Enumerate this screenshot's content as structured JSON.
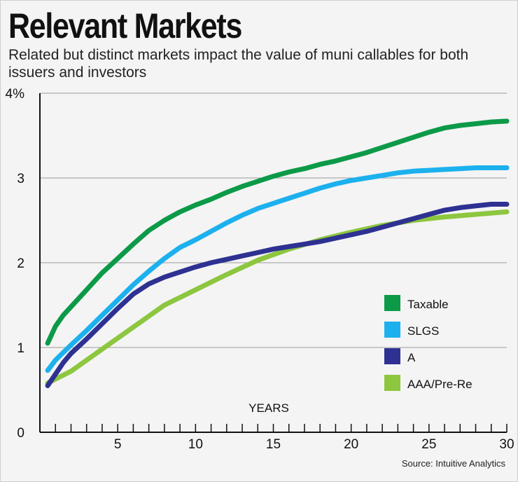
{
  "header": {
    "title": "Relevant Markets",
    "subtitle": "Related but distinct markets impact the value of muni callables for both issuers and investors"
  },
  "source": "Source: Intuitive Analytics",
  "chart_data": {
    "type": "line",
    "xlabel": "YEARS",
    "ylabel": "",
    "xlim": [
      0,
      30
    ],
    "ylim": [
      0,
      4
    ],
    "x_ticks": [
      5,
      10,
      15,
      20,
      25,
      30
    ],
    "x_tick_labels": [
      "5",
      "10",
      "15",
      "20",
      "25",
      "30"
    ],
    "y_ticks": [
      0,
      1,
      2,
      3,
      4
    ],
    "y_tick_labels": [
      "0",
      "1",
      "2",
      "3",
      "4%"
    ],
    "grid": true,
    "legend_position": "right-middle",
    "series": [
      {
        "name": "Taxable",
        "color": "#0c9a48",
        "x": [
          0.5,
          1,
          1.5,
          2,
          3,
          4,
          5,
          6,
          7,
          8,
          9,
          10,
          11,
          12,
          13,
          14,
          15,
          16,
          17,
          18,
          19,
          20,
          21,
          22,
          23,
          24,
          25,
          26,
          27,
          28,
          29,
          30
        ],
        "y": [
          1.05,
          1.25,
          1.38,
          1.48,
          1.68,
          1.88,
          2.05,
          2.22,
          2.38,
          2.5,
          2.6,
          2.68,
          2.75,
          2.83,
          2.9,
          2.96,
          3.02,
          3.07,
          3.11,
          3.16,
          3.2,
          3.25,
          3.3,
          3.36,
          3.42,
          3.48,
          3.54,
          3.59,
          3.62,
          3.64,
          3.66,
          3.67
        ]
      },
      {
        "name": "SLGS",
        "color": "#1cb1ee",
        "x": [
          0.5,
          1,
          2,
          3,
          4,
          5,
          6,
          7,
          8,
          9,
          10,
          11,
          12,
          13,
          14,
          15,
          16,
          17,
          18,
          19,
          20,
          21,
          22,
          23,
          24,
          25,
          26,
          27,
          28,
          29,
          30
        ],
        "y": [
          0.73,
          0.85,
          1.03,
          1.2,
          1.38,
          1.56,
          1.74,
          1.9,
          2.05,
          2.18,
          2.27,
          2.37,
          2.47,
          2.56,
          2.64,
          2.7,
          2.76,
          2.82,
          2.88,
          2.93,
          2.97,
          3.0,
          3.03,
          3.06,
          3.08,
          3.09,
          3.1,
          3.11,
          3.12,
          3.12,
          3.12
        ]
      },
      {
        "name": "A",
        "color": "#2e3192",
        "x": [
          0.5,
          1.5,
          2,
          3,
          4,
          5,
          6,
          7,
          8,
          9,
          10,
          11,
          12,
          13,
          14,
          15,
          16,
          17,
          18,
          19,
          20,
          21,
          22,
          23,
          24,
          25,
          26,
          27,
          28,
          29,
          30
        ],
        "y": [
          0.55,
          0.82,
          0.93,
          1.1,
          1.28,
          1.46,
          1.63,
          1.75,
          1.83,
          1.89,
          1.95,
          2.0,
          2.04,
          2.08,
          2.12,
          2.16,
          2.19,
          2.22,
          2.25,
          2.29,
          2.33,
          2.37,
          2.42,
          2.47,
          2.52,
          2.57,
          2.62,
          2.65,
          2.67,
          2.69,
          2.69
        ]
      },
      {
        "name": "AAA/Pre-Re",
        "color": "#8dc63f",
        "x": [
          0.5,
          2,
          4,
          6,
          8,
          10,
          12,
          14,
          16,
          18,
          20,
          22,
          24,
          26,
          28,
          30
        ],
        "y": [
          0.58,
          0.72,
          0.98,
          1.24,
          1.5,
          1.68,
          1.86,
          2.03,
          2.16,
          2.27,
          2.36,
          2.44,
          2.5,
          2.54,
          2.57,
          2.6
        ]
      }
    ]
  }
}
